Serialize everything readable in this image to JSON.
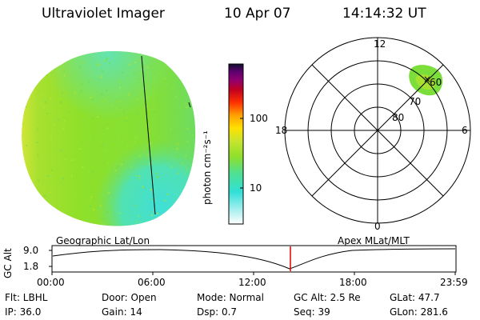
{
  "header": {
    "instrument": "Ultraviolet Imager",
    "date": "10 Apr 07",
    "time": "14:14:32 UT"
  },
  "colorbar": {
    "unit_label": "photon cm⁻²s⁻¹",
    "ticks": [
      "100",
      "10"
    ]
  },
  "polar_plot": {
    "mlt_labels": {
      "top": "12",
      "left": "18",
      "right": "6",
      "bottom": "0"
    },
    "lat_labels": [
      "60",
      "70",
      "80"
    ]
  },
  "timeline": {
    "ylabel": "GC Alt",
    "y_ticks": [
      "9.0",
      "1.8"
    ],
    "left_label": "Geographic Lat/Lon",
    "right_label": "Apex  MLat/MLT",
    "x_ticks": [
      "00:00",
      "06:00",
      "12:00",
      "18:00",
      "23:59"
    ],
    "marker_time": "14:14:32"
  },
  "status": {
    "row1": {
      "flt": "Flt: LBHL",
      "door": "Door: Open",
      "mode": "Mode: Normal",
      "gcalt": "GC Alt: 2.5 Re",
      "glat": "GLat:  47.7"
    },
    "row2": {
      "ip": "IP: 36.0",
      "gain": "Gain: 14",
      "dsp": "Dsp:    0.7",
      "seq": "Seq: 39",
      "glon": "GLon: 281.6"
    }
  },
  "colors": {
    "disk_main": "#8ee02a",
    "disk_yellow": "#dfe83a",
    "disk_cyan": "#40e0d8",
    "timeline_marker": "#e00000"
  }
}
